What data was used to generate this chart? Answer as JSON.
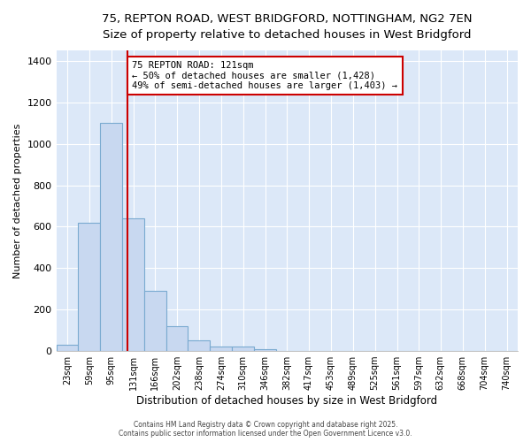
{
  "title_line1": "75, REPTON ROAD, WEST BRIDGFORD, NOTTINGHAM, NG2 7EN",
  "title_line2": "Size of property relative to detached houses in West Bridgford",
  "xlabel": "Distribution of detached houses by size in West Bridgford",
  "ylabel": "Number of detached properties",
  "bar_color": "#c8d8f0",
  "bar_edge_color": "#7aaad0",
  "plot_bg_color": "#dce8f8",
  "fig_bg_color": "#ffffff",
  "grid_color": "#ffffff",
  "bin_labels": [
    "23sqm",
    "59sqm",
    "95sqm",
    "131sqm",
    "166sqm",
    "202sqm",
    "238sqm",
    "274sqm",
    "310sqm",
    "346sqm",
    "382sqm",
    "417sqm",
    "453sqm",
    "489sqm",
    "525sqm",
    "561sqm",
    "597sqm",
    "632sqm",
    "668sqm",
    "704sqm",
    "740sqm"
  ],
  "bin_edges": [
    5,
    41,
    77,
    113,
    149,
    184,
    220,
    256,
    292,
    328,
    364,
    399,
    435,
    471,
    507,
    543,
    579,
    614,
    650,
    686,
    722,
    758
  ],
  "values": [
    30,
    620,
    1100,
    640,
    290,
    120,
    50,
    20,
    20,
    10,
    0,
    0,
    0,
    0,
    0,
    0,
    0,
    0,
    0,
    0,
    0
  ],
  "property_size": 121,
  "vline_color": "#cc0000",
  "annotation_text": "75 REPTON ROAD: 121sqm\n← 50% of detached houses are smaller (1,428)\n49% of semi-detached houses are larger (1,403) →",
  "annotation_box_color": "#ffffff",
  "annotation_border_color": "#cc0000",
  "ylim": [
    0,
    1450
  ],
  "yticks": [
    0,
    200,
    400,
    600,
    800,
    1000,
    1200,
    1400
  ],
  "footnote1": "Contains HM Land Registry data © Crown copyright and database right 2025.",
  "footnote2": "Contains public sector information licensed under the Open Government Licence v3.0."
}
